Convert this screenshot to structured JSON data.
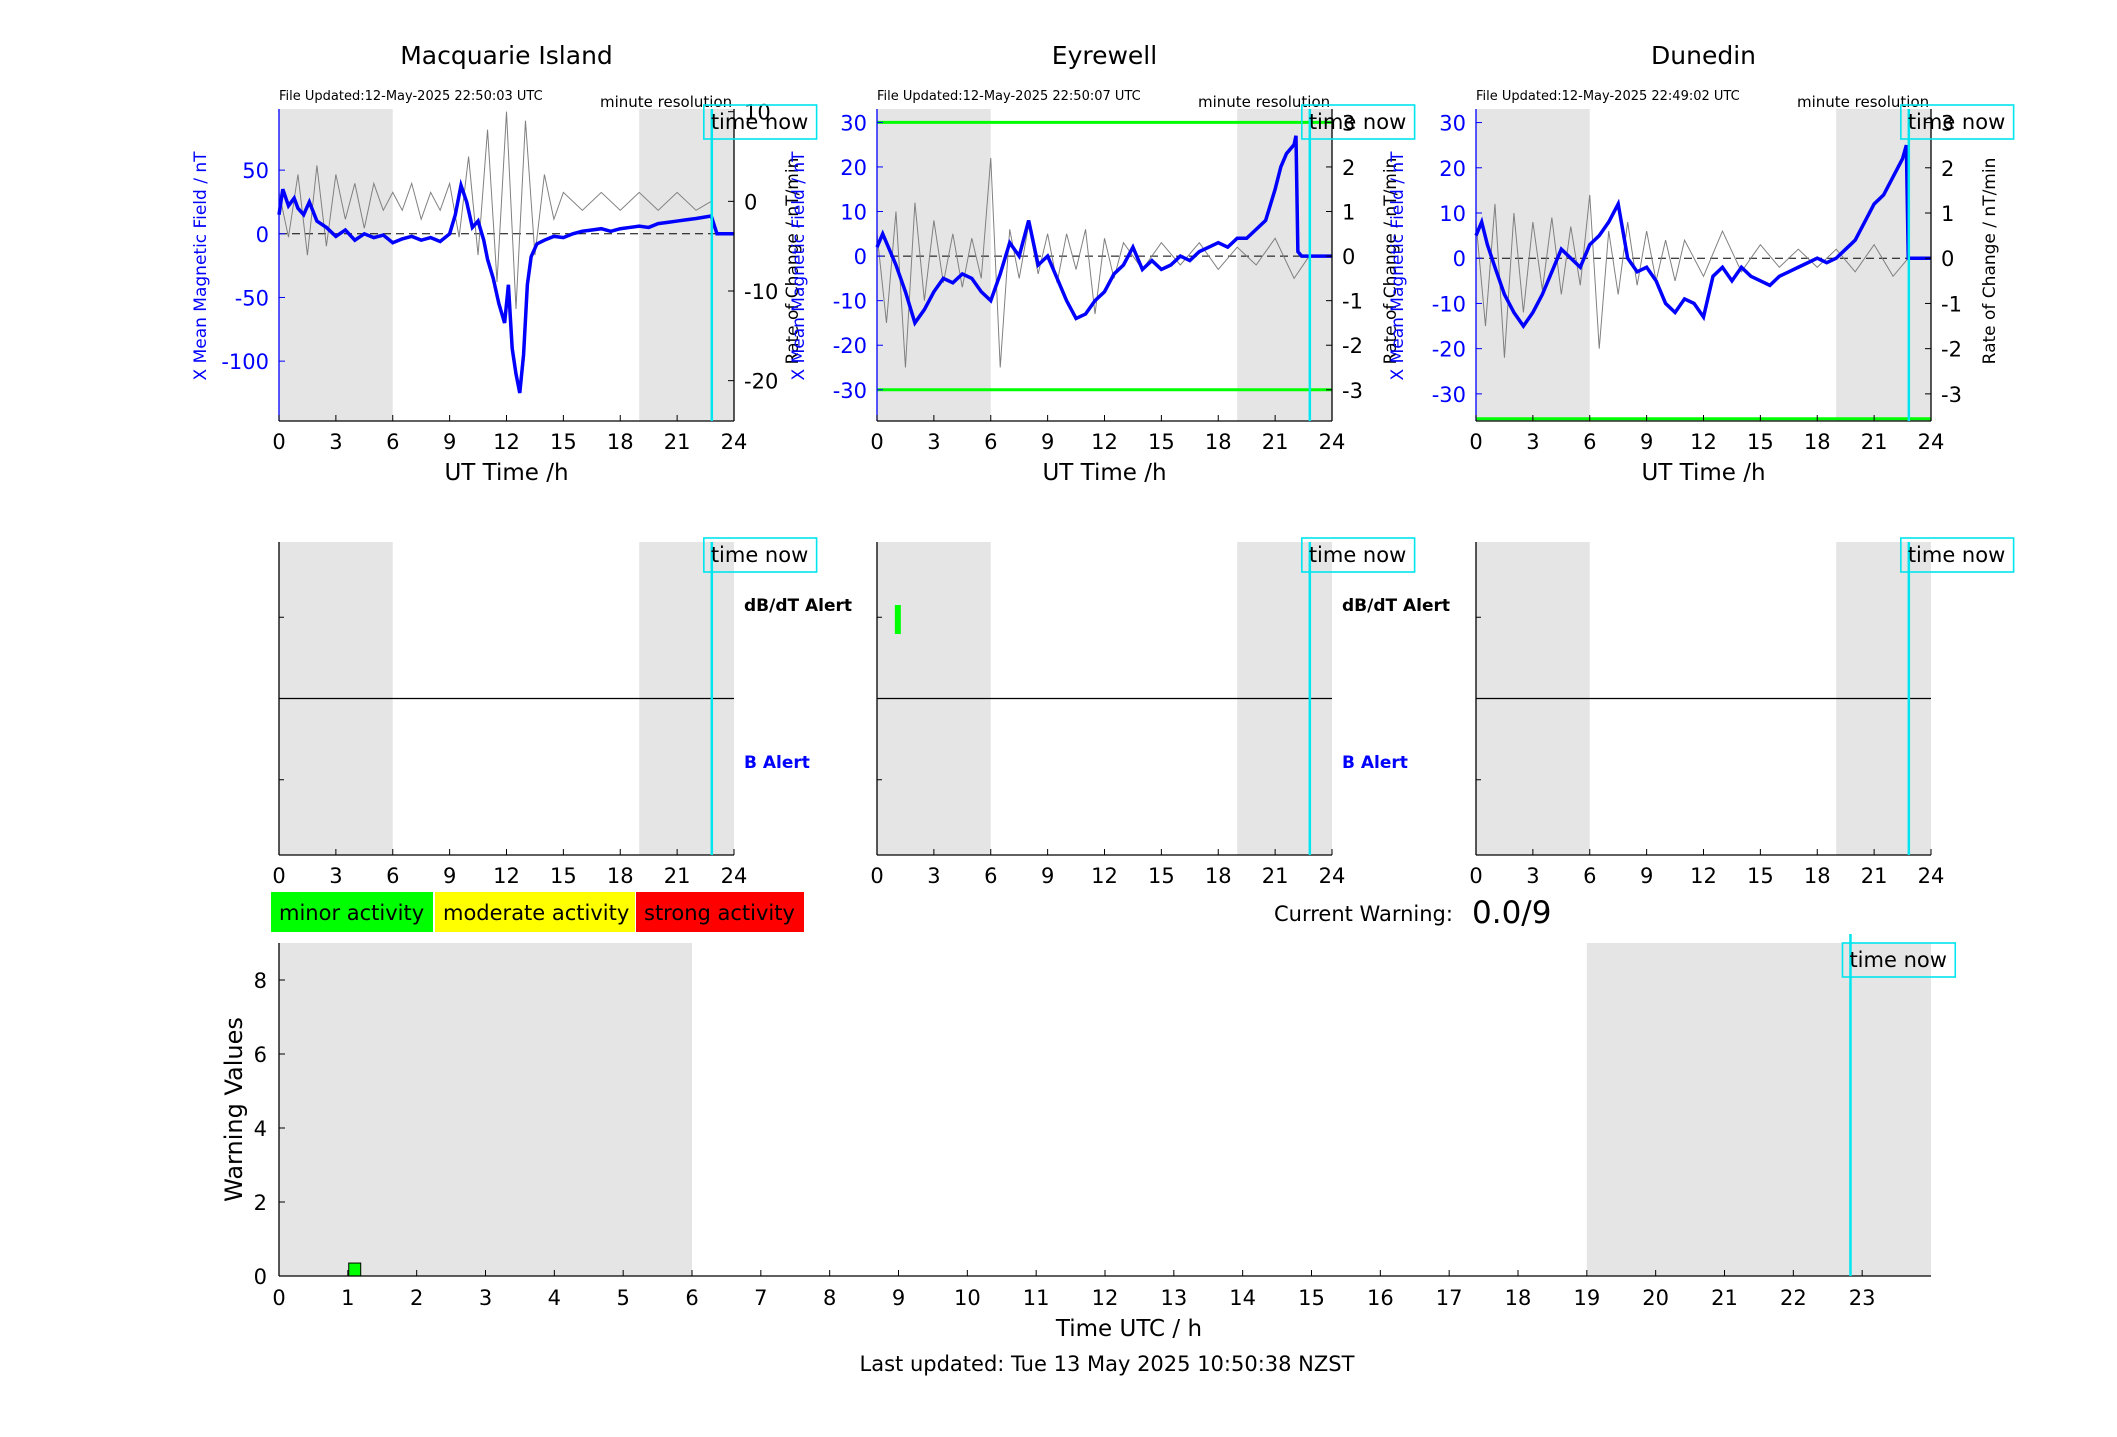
{
  "colors": {
    "field": "#0000ff",
    "rate": "#808080",
    "night": "#e5e5e5",
    "time_now": "#00e5ee",
    "threshold": "#00ff00",
    "minor": "#00ff00",
    "moderate": "#ffff00",
    "strong": "#ff0000"
  },
  "stations": [
    {
      "title": "Macquarie Island",
      "file_updated": "File Updated:12-May-2025 22:50:03 UTC",
      "resolution": "minute resolution",
      "time_now_label": "time now",
      "chart_data": {
        "type": "line",
        "xlabel": "UT Time /h",
        "ylabel": "X Mean Magnetic Field / nT",
        "y2label": "Rate of Change / nT/min",
        "xlim": [
          0,
          24
        ],
        "xticks": [
          "0",
          "3",
          "6",
          "9",
          "12",
          "15",
          "18",
          "21",
          "24"
        ],
        "ylim": [
          -147,
          98
        ],
        "yticks": [
          "50",
          "0",
          "-50",
          "-100"
        ],
        "ytick_values": [
          50,
          0,
          -50,
          -100
        ],
        "y2lim": [
          -24.5,
          10.3
        ],
        "y2ticks": [
          "10",
          "0",
          "-10",
          "-20"
        ],
        "y2tick_values": [
          10,
          0,
          -10,
          -20
        ],
        "night_bands": [
          [
            0,
            6
          ],
          [
            19,
            24
          ]
        ],
        "time_now": 22.83,
        "thresholds": [],
        "series": [
          {
            "role": "field",
            "x": [
              0,
              0.2,
              0.5,
              0.8,
              1,
              1.3,
              1.6,
              2,
              2.5,
              3,
              3.5,
              4,
              4.5,
              5,
              5.5,
              6,
              6.5,
              7,
              7.5,
              8,
              8.5,
              9,
              9.3,
              9.6,
              9.9,
              10.2,
              10.5,
              10.8,
              11,
              11.3,
              11.6,
              11.9,
              12.1,
              12.3,
              12.5,
              12.7,
              12.9,
              13.1,
              13.3,
              13.6,
              14,
              14.5,
              15,
              15.5,
              16,
              16.5,
              17,
              17.5,
              18,
              18.5,
              19,
              19.5,
              20,
              20.5,
              21,
              21.5,
              22,
              22.8,
              23.1,
              24
            ],
            "values": [
              15,
              35,
              22,
              28,
              20,
              15,
              25,
              10,
              5,
              -2,
              3,
              -5,
              0,
              -3,
              -1,
              -7,
              -4,
              -2,
              -5,
              -3,
              -6,
              0,
              15,
              38,
              25,
              5,
              10,
              -5,
              -20,
              -35,
              -55,
              -70,
              -40,
              -90,
              -110,
              -125,
              -95,
              -40,
              -18,
              -8,
              -5,
              -2,
              -3,
              0,
              2,
              3,
              4,
              2,
              4,
              5,
              6,
              5,
              8,
              9,
              10,
              11,
              12,
              14,
              0,
              0
            ]
          },
          {
            "role": "rate",
            "x": [
              0,
              0.5,
              1,
              1.5,
              2,
              2.5,
              3,
              3.5,
              4,
              4.5,
              5,
              5.5,
              6,
              6.5,
              7,
              7.5,
              8,
              8.5,
              9,
              9.5,
              10,
              10.5,
              11,
              11.5,
              12,
              12.5,
              13,
              13.5,
              14,
              14.5,
              15,
              16,
              17,
              18,
              19,
              20,
              21,
              22,
              22.8
            ],
            "values": [
              1,
              -4,
              3,
              -6,
              4,
              -5,
              3,
              -2,
              2,
              -3,
              2,
              -1,
              1,
              -1,
              2,
              -2,
              1,
              -1,
              2,
              -4,
              5,
              -6,
              8,
              -9,
              10,
              -12,
              9,
              -6,
              3,
              -2,
              1,
              -1,
              1,
              -1,
              1,
              -1,
              1,
              -1,
              0
            ]
          }
        ]
      }
    },
    {
      "title": "Eyrewell",
      "file_updated": "File Updated:12-May-2025 22:50:07 UTC",
      "resolution": "minute resolution",
      "time_now_label": "time now",
      "chart_data": {
        "type": "line",
        "xlabel": "UT Time /h",
        "ylabel": "X Mean Magnetic Field / nT",
        "y2label": "Rate of Change / nT/min",
        "xlim": [
          0,
          24
        ],
        "xticks": [
          "0",
          "3",
          "6",
          "9",
          "12",
          "15",
          "18",
          "21",
          "24"
        ],
        "ylim": [
          -37,
          33
        ],
        "yticks": [
          "30",
          "20",
          "10",
          "0",
          "-10",
          "-20",
          "-30"
        ],
        "ytick_values": [
          30,
          20,
          10,
          0,
          -10,
          -20,
          -30
        ],
        "y2lim": [
          -3.7,
          3.3
        ],
        "y2ticks": [
          "3",
          "2",
          "1",
          "0",
          "-1",
          "-2",
          "-3"
        ],
        "y2tick_values": [
          3,
          2,
          1,
          0,
          -1,
          -2,
          -3
        ],
        "night_bands": [
          [
            0,
            6
          ],
          [
            19,
            24
          ]
        ],
        "time_now": 22.83,
        "thresholds": [
          30,
          -30
        ],
        "series": [
          {
            "role": "field",
            "x": [
              0,
              0.3,
              0.6,
              1,
              1.5,
              2,
              2.5,
              3,
              3.5,
              4,
              4.5,
              5,
              5.5,
              6,
              6.5,
              7,
              7.5,
              8,
              8.5,
              9,
              9.5,
              10,
              10.5,
              11,
              11.5,
              12,
              12.5,
              13,
              13.5,
              14,
              14.5,
              15,
              15.5,
              16,
              16.5,
              17,
              17.5,
              18,
              18.5,
              19,
              19.5,
              20,
              20.5,
              21,
              21.3,
              21.6,
              22,
              22.1,
              22.2,
              22.4,
              22.8,
              24
            ],
            "values": [
              2,
              5,
              2,
              -2,
              -8,
              -15,
              -12,
              -8,
              -5,
              -6,
              -4,
              -5,
              -8,
              -10,
              -4,
              3,
              0,
              8,
              -2,
              0,
              -5,
              -10,
              -14,
              -13,
              -10,
              -8,
              -4,
              -2,
              2,
              -3,
              -1,
              -3,
              -2,
              0,
              -1,
              1,
              2,
              3,
              2,
              4,
              4,
              6,
              8,
              15,
              20,
              23,
              25,
              27,
              1,
              0,
              0,
              0
            ]
          },
          {
            "role": "rate",
            "x": [
              0,
              0.5,
              1,
              1.5,
              2,
              2.5,
              3,
              3.5,
              4,
              4.5,
              5,
              5.5,
              6,
              6.5,
              7,
              7.5,
              8,
              8.5,
              9,
              9.5,
              10,
              10.5,
              11,
              11.5,
              12,
              12.5,
              13,
              14,
              15,
              16,
              17,
              18,
              19,
              20,
              21,
              22,
              22.8
            ],
            "values": [
              0.5,
              -1.5,
              1,
              -2.5,
              1.2,
              -1,
              0.8,
              -0.6,
              0.5,
              -0.7,
              0.4,
              -0.5,
              2.2,
              -2.5,
              0.6,
              -0.5,
              0.7,
              -0.4,
              0.5,
              -0.6,
              0.5,
              -0.3,
              0.6,
              -1.3,
              0.4,
              -0.5,
              0.3,
              -0.3,
              0.3,
              -0.2,
              0.3,
              -0.3,
              0.2,
              -0.2,
              0.4,
              -0.5,
              0
            ]
          }
        ]
      }
    },
    {
      "title": "Dunedin",
      "file_updated": "File Updated:12-May-2025 22:49:02 UTC",
      "resolution": "minute resolution",
      "time_now_label": "time now",
      "chart_data": {
        "type": "line",
        "xlabel": "UT Time /h",
        "ylabel": "X Mean Magnetic Field / nT",
        "y2label": "Rate of Change / nT/min",
        "xlim": [
          0,
          24
        ],
        "xticks": [
          "0",
          "3",
          "6",
          "9",
          "12",
          "15",
          "18",
          "21",
          "24"
        ],
        "ylim": [
          -36,
          33
        ],
        "yticks": [
          "30",
          "20",
          "10",
          "0",
          "-10",
          "-20",
          "-30"
        ],
        "ytick_values": [
          30,
          20,
          10,
          0,
          -10,
          -20,
          -30
        ],
        "y2lim": [
          -3.6,
          3.3
        ],
        "y2ticks": [
          "3",
          "2",
          "1",
          "0",
          "-1",
          "-2",
          "-3"
        ],
        "y2tick_values": [
          3,
          2,
          1,
          0,
          -1,
          -2,
          -3
        ],
        "night_bands": [
          [
            0,
            6
          ],
          [
            19,
            24
          ]
        ],
        "time_now": 22.83,
        "thresholds": [
          -35.5
        ],
        "series": [
          {
            "role": "field",
            "x": [
              0,
              0.3,
              0.6,
              1,
              1.5,
              2,
              2.5,
              3,
              3.5,
              4,
              4.5,
              5,
              5.5,
              6,
              6.5,
              7,
              7.5,
              8,
              8.5,
              9,
              9.5,
              10,
              10.5,
              11,
              11.5,
              12,
              12.5,
              13,
              13.5,
              14,
              14.5,
              15,
              15.5,
              16,
              16.5,
              17,
              17.5,
              18,
              18.5,
              19,
              19.5,
              20,
              20.5,
              21,
              21.5,
              22,
              22.5,
              22.7,
              22.8,
              24
            ],
            "values": [
              5,
              8,
              3,
              -2,
              -8,
              -12,
              -15,
              -12,
              -8,
              -3,
              2,
              0,
              -2,
              3,
              5,
              8,
              12,
              0,
              -3,
              -2,
              -5,
              -10,
              -12,
              -9,
              -10,
              -13,
              -4,
              -2,
              -5,
              -2,
              -4,
              -5,
              -6,
              -4,
              -3,
              -2,
              -1,
              0,
              -1,
              0,
              2,
              4,
              8,
              12,
              14,
              18,
              22,
              25,
              0,
              0
            ]
          },
          {
            "role": "rate",
            "x": [
              0,
              0.5,
              1,
              1.5,
              2,
              2.5,
              3,
              3.5,
              4,
              4.5,
              5,
              5.5,
              6,
              6.5,
              7,
              7.5,
              8,
              8.5,
              9,
              9.5,
              10,
              10.5,
              11,
              12,
              13,
              14,
              15,
              16,
              17,
              18,
              19,
              20,
              21,
              22,
              22.8
            ],
            "values": [
              0.8,
              -1.5,
              1.2,
              -2.2,
              1,
              -1.2,
              0.8,
              -0.7,
              0.9,
              -0.8,
              0.7,
              -0.6,
              1.4,
              -2,
              0.6,
              -0.8,
              0.8,
              -0.6,
              0.6,
              -0.5,
              0.4,
              -0.5,
              0.4,
              -0.4,
              0.6,
              -0.3,
              0.3,
              -0.2,
              0.2,
              -0.2,
              0.2,
              -0.3,
              0.3,
              -0.4,
              0
            ]
          }
        ]
      }
    }
  ],
  "alerts": [
    {
      "labels": {
        "dbdt": "dB/dT Alert",
        "b": "B Alert"
      },
      "time_now_label": "time now",
      "chart_data": {
        "type": "bar",
        "xlim": [
          0,
          24
        ],
        "xticks": [
          "0",
          "3",
          "6",
          "9",
          "12",
          "15",
          "18",
          "21",
          "24"
        ],
        "night_bands": [
          [
            0,
            6
          ],
          [
            19,
            24
          ]
        ],
        "time_now": 22.83,
        "dbdt_marks": [],
        "b_marks": []
      }
    },
    {
      "labels": {
        "dbdt": "dB/dT Alert",
        "b": "B Alert"
      },
      "time_now_label": "time now",
      "chart_data": {
        "type": "bar",
        "xlim": [
          0,
          24
        ],
        "xticks": [
          "0",
          "3",
          "6",
          "9",
          "12",
          "15",
          "18",
          "21",
          "24"
        ],
        "night_bands": [
          [
            0,
            6
          ],
          [
            19,
            24
          ]
        ],
        "time_now": 22.83,
        "dbdt_marks": [
          1.1
        ],
        "b_marks": []
      }
    },
    {
      "labels": {
        "dbdt": "",
        "b": ""
      },
      "time_now_label": "time now",
      "chart_data": {
        "type": "bar",
        "xlim": [
          0,
          24
        ],
        "xticks": [
          "0",
          "3",
          "6",
          "9",
          "12",
          "15",
          "18",
          "21",
          "24"
        ],
        "night_bands": [
          [
            0,
            6
          ],
          [
            19,
            24
          ]
        ],
        "time_now": 22.83,
        "dbdt_marks": [],
        "b_marks": []
      }
    }
  ],
  "legend": {
    "minor": "minor activity",
    "moderate": "moderate activity",
    "strong": "strong activity"
  },
  "warning": {
    "label": "Current Warning:",
    "value": "0.0/9"
  },
  "warning_chart": {
    "time_now_label": "time now",
    "chart_data": {
      "type": "bar",
      "xlabel": "Time UTC / h",
      "ylabel": "Warning Values",
      "xlim": [
        0,
        24
      ],
      "xticks": [
        "0",
        "1",
        "2",
        "3",
        "4",
        "5",
        "6",
        "7",
        "8",
        "9",
        "10",
        "11",
        "12",
        "13",
        "14",
        "15",
        "16",
        "17",
        "18",
        "19",
        "20",
        "21",
        "22",
        "23"
      ],
      "ylim": [
        0,
        9
      ],
      "yticks": [
        "0",
        "2",
        "4",
        "6",
        "8"
      ],
      "ytick_values": [
        0,
        2,
        4,
        6,
        8
      ],
      "night_bands": [
        [
          0,
          6
        ],
        [
          19,
          24
        ]
      ],
      "time_now": 22.83,
      "bars": [
        {
          "x": 1.1,
          "value": 0.35,
          "level": "minor"
        }
      ]
    }
  },
  "footer": {
    "last_updated": "Last updated: Tue 13 May 2025 10:50:38 NZST"
  }
}
